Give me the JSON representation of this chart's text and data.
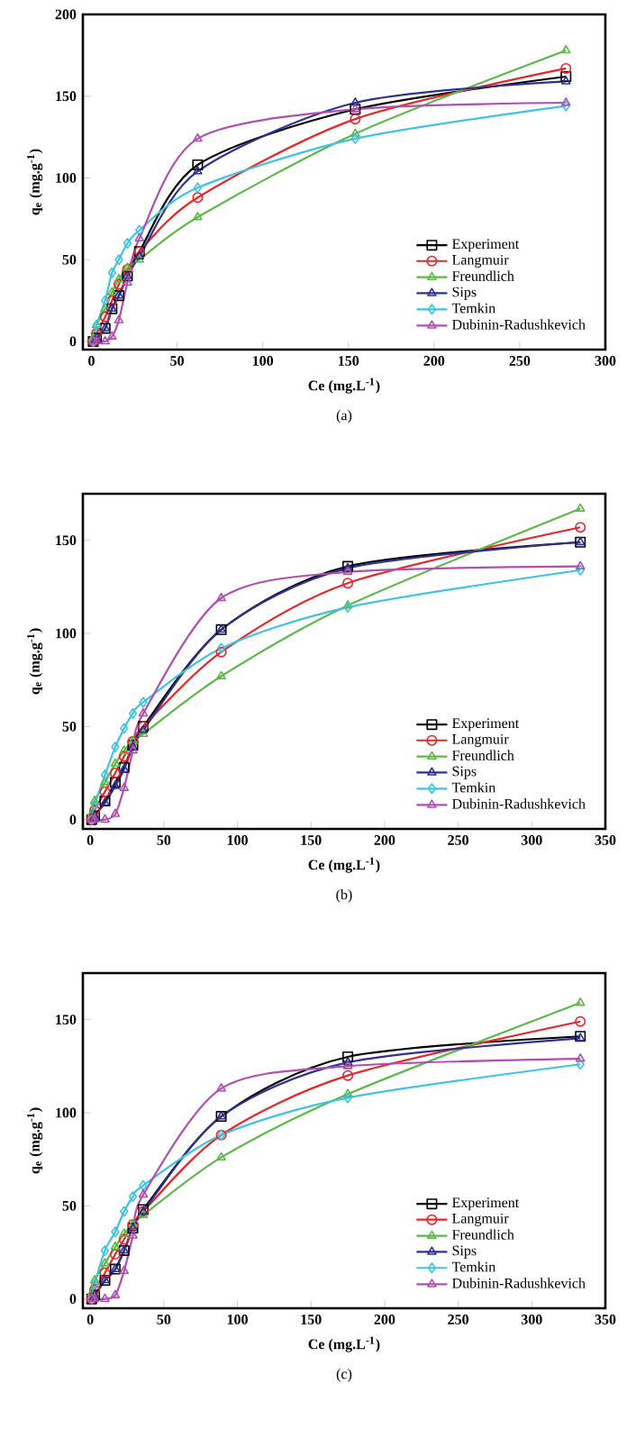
{
  "chart_data": [
    {
      "type": "line",
      "title": "(a)",
      "xlabel": "Ce (mg.L$^{-1}$)",
      "ylabel": "q$_{e}$ (mg.g$^{-1}$)",
      "x": [
        1,
        3,
        8,
        12,
        16,
        21,
        28,
        62,
        154,
        277
      ],
      "xlim": [
        -5,
        300
      ],
      "ylim": [
        -5,
        200
      ],
      "xticks": [
        0,
        50,
        100,
        150,
        200,
        250,
        300
      ],
      "yticks": [
        0,
        50,
        100,
        150,
        200
      ],
      "legend": "bottom right",
      "series": [
        {
          "name": "Experiment",
          "color": "#000000",
          "marker": "square",
          "values": [
            0,
            2,
            8,
            20,
            28,
            40,
            55,
            108,
            142,
            162
          ]
        },
        {
          "name": "Langmuir",
          "color": "#e8262a",
          "marker": "circle",
          "values": [
            0,
            5,
            15,
            25,
            35,
            44,
            55,
            88,
            136,
            167
          ]
        },
        {
          "name": "Freundlich",
          "color": "#5cb848",
          "marker": "triangle",
          "values": [
            2,
            10,
            20,
            30,
            38,
            45,
            50,
            76,
            127,
            178
          ]
        },
        {
          "name": "Sips",
          "color": "#2e3192",
          "marker": "triangle",
          "values": [
            0,
            2,
            8,
            20,
            28,
            40,
            52,
            104,
            146,
            159
          ]
        },
        {
          "name": "Temkin",
          "color": "#3fc4e0",
          "marker": "diamond",
          "values": [
            0,
            10,
            25,
            42,
            50,
            60,
            68,
            94,
            124,
            144
          ]
        },
        {
          "name": "Dubinin-Radushkevich",
          "color": "#b04fb0",
          "marker": "triangle",
          "values": [
            0,
            0,
            0,
            3,
            13,
            36,
            63,
            124,
            142,
            146
          ]
        }
      ]
    },
    {
      "type": "line",
      "title": "(b)",
      "xlabel": "Ce (mg.L$^{-1}$)",
      "ylabel": "q$_{e}$ (mg.g$^{-1}$)",
      "x": [
        1,
        3,
        10,
        17,
        23,
        29,
        36,
        89,
        175,
        333
      ],
      "xlim": [
        -5,
        350
      ],
      "ylim": [
        -5,
        175
      ],
      "xticks": [
        0,
        50,
        100,
        150,
        200,
        250,
        300,
        350
      ],
      "yticks": [
        0,
        50,
        100,
        150
      ],
      "legend": "bottom right",
      "series": [
        {
          "name": "Experiment",
          "color": "#000000",
          "marker": "square",
          "values": [
            0,
            2,
            10,
            20,
            28,
            40,
            50,
            102,
            136,
            149
          ]
        },
        {
          "name": "Langmuir",
          "color": "#e8262a",
          "marker": "circle",
          "values": [
            0,
            5,
            15,
            25,
            34,
            42,
            50,
            90,
            127,
            157
          ]
        },
        {
          "name": "Freundlich",
          "color": "#5cb848",
          "marker": "triangle",
          "values": [
            3,
            10,
            20,
            30,
            37,
            42,
            46,
            77,
            115,
            167
          ]
        },
        {
          "name": "Sips",
          "color": "#2e3192",
          "marker": "triangle",
          "values": [
            0,
            2,
            9,
            18,
            27,
            39,
            48,
            102,
            135,
            149
          ]
        },
        {
          "name": "Temkin",
          "color": "#3fc4e0",
          "marker": "diamond",
          "values": [
            0,
            8,
            24,
            39,
            49,
            57,
            63,
            92,
            114,
            134
          ]
        },
        {
          "name": "Dubinin-Radushkevich",
          "color": "#b04fb0",
          "marker": "triangle",
          "values": [
            0,
            0,
            0,
            3,
            17,
            37,
            57,
            119,
            133,
            136
          ]
        }
      ]
    },
    {
      "type": "line",
      "title": "(c)",
      "xlabel": "Ce (mg.L$^{-1}$)",
      "ylabel": "q$_{e}$ (mg.g$^{-1}$)",
      "x": [
        1,
        3,
        10,
        17,
        23,
        29,
        36,
        89,
        175,
        333
      ],
      "xlim": [
        -5,
        350
      ],
      "ylim": [
        -5,
        175
      ],
      "xticks": [
        0,
        50,
        100,
        150,
        200,
        250,
        300,
        350
      ],
      "yticks": [
        0,
        50,
        100,
        150
      ],
      "legend": "bottom right",
      "series": [
        {
          "name": "Experiment",
          "color": "#000000",
          "marker": "square",
          "values": [
            0,
            2,
            10,
            16,
            26,
            38,
            48,
            98,
            130,
            141
          ]
        },
        {
          "name": "Langmuir",
          "color": "#e8262a",
          "marker": "circle",
          "values": [
            0,
            5,
            14,
            24,
            32,
            40,
            47,
            88,
            120,
            149
          ]
        },
        {
          "name": "Freundlich",
          "color": "#5cb848",
          "marker": "triangle",
          "values": [
            3,
            10,
            19,
            28,
            35,
            40,
            45,
            76,
            110,
            159
          ]
        },
        {
          "name": "Sips",
          "color": "#2e3192",
          "marker": "triangle",
          "values": [
            0,
            2,
            10,
            16,
            26,
            38,
            47,
            98,
            127,
            140
          ]
        },
        {
          "name": "Temkin",
          "color": "#3fc4e0",
          "marker": "diamond",
          "values": [
            0,
            8,
            26,
            36,
            47,
            55,
            61,
            88,
            108,
            126
          ]
        },
        {
          "name": "Dubinin-Radushkevich",
          "color": "#b04fb0",
          "marker": "triangle",
          "values": [
            0,
            0,
            0,
            2,
            15,
            34,
            56,
            113,
            125,
            129
          ]
        }
      ]
    }
  ]
}
